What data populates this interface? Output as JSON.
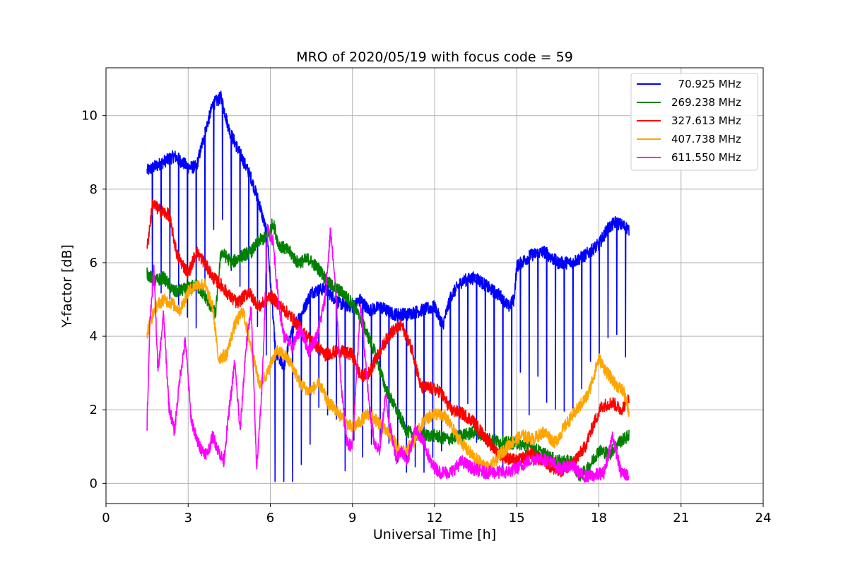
{
  "chart_data": {
    "type": "line",
    "title": "MRO of 2020/05/19 with focus code = 59",
    "xlabel": "Universal Time [h]",
    "ylabel": "Y-factor [dB]",
    "xlim": [
      0,
      24
    ],
    "ylim": [
      -0.55,
      11.3
    ],
    "xticks": [
      "0",
      "3",
      "6",
      "9",
      "12",
      "15",
      "18",
      "21",
      "24"
    ],
    "yticks": [
      "0",
      "2",
      "4",
      "6",
      "8",
      "10"
    ],
    "grid": true,
    "legend_position": "top-right",
    "series": [
      {
        "name": "  70.925 MHz",
        "color": "#0000ff",
        "dips": true,
        "points": [
          [
            1.5,
            8.5
          ],
          [
            2.0,
            8.7
          ],
          [
            2.5,
            8.9
          ],
          [
            3.0,
            8.6
          ],
          [
            3.3,
            8.6
          ],
          [
            3.6,
            9.5
          ],
          [
            3.9,
            10.3
          ],
          [
            4.2,
            10.5
          ],
          [
            4.5,
            9.6
          ],
          [
            5.0,
            8.8
          ],
          [
            5.3,
            8.3
          ],
          [
            5.6,
            7.6
          ],
          [
            5.9,
            6.7
          ],
          [
            6.0,
            5.5
          ],
          [
            6.2,
            3.5
          ],
          [
            6.5,
            3.2
          ],
          [
            6.8,
            4.2
          ],
          [
            7.2,
            4.7
          ],
          [
            7.5,
            5.2
          ],
          [
            8.0,
            5.3
          ],
          [
            8.5,
            4.9
          ],
          [
            9.0,
            4.8
          ],
          [
            9.3,
            5.0
          ],
          [
            9.6,
            4.7
          ],
          [
            10.0,
            4.8
          ],
          [
            10.5,
            4.6
          ],
          [
            11.0,
            4.6
          ],
          [
            11.5,
            4.7
          ],
          [
            12.0,
            4.8
          ],
          [
            12.3,
            4.3
          ],
          [
            12.6,
            5.1
          ],
          [
            13.0,
            5.5
          ],
          [
            13.5,
            5.6
          ],
          [
            14.0,
            5.3
          ],
          [
            14.4,
            5.1
          ],
          [
            14.7,
            4.8
          ],
          [
            14.9,
            5.0
          ],
          [
            15.0,
            5.9
          ],
          [
            15.5,
            6.2
          ],
          [
            16.0,
            6.3
          ],
          [
            16.5,
            6.0
          ],
          [
            17.0,
            6.0
          ],
          [
            17.5,
            6.2
          ],
          [
            18.0,
            6.5
          ],
          [
            18.3,
            6.9
          ],
          [
            18.6,
            7.1
          ],
          [
            18.9,
            7.0
          ],
          [
            19.1,
            6.9
          ]
        ]
      },
      {
        "name": "269.238 MHz",
        "color": "#008000",
        "dips": false,
        "points": [
          [
            1.5,
            5.7
          ],
          [
            1.8,
            5.5
          ],
          [
            2.1,
            5.6
          ],
          [
            2.5,
            5.2
          ],
          [
            3.0,
            5.3
          ],
          [
            3.3,
            5.4
          ],
          [
            3.6,
            5.1
          ],
          [
            4.0,
            4.6
          ],
          [
            4.2,
            6.3
          ],
          [
            4.6,
            6.0
          ],
          [
            5.0,
            6.2
          ],
          [
            5.3,
            6.3
          ],
          [
            5.6,
            6.6
          ],
          [
            5.9,
            6.7
          ],
          [
            6.1,
            7.1
          ],
          [
            6.3,
            6.5
          ],
          [
            6.7,
            6.3
          ],
          [
            7.0,
            6.0
          ],
          [
            7.4,
            6.1
          ],
          [
            7.8,
            5.8
          ],
          [
            8.2,
            5.4
          ],
          [
            8.6,
            5.2
          ],
          [
            9.0,
            4.9
          ],
          [
            9.4,
            4.3
          ],
          [
            9.8,
            3.6
          ],
          [
            10.2,
            2.6
          ],
          [
            10.6,
            2.0
          ],
          [
            11.0,
            1.4
          ],
          [
            11.5,
            1.3
          ],
          [
            12.0,
            1.3
          ],
          [
            12.5,
            1.2
          ],
          [
            13.0,
            1.3
          ],
          [
            13.5,
            1.4
          ],
          [
            14.0,
            1.2
          ],
          [
            14.5,
            1.1
          ],
          [
            15.0,
            1.1
          ],
          [
            15.5,
            1.0
          ],
          [
            16.0,
            0.8
          ],
          [
            16.5,
            0.6
          ],
          [
            17.0,
            0.6
          ],
          [
            17.3,
            0.2
          ],
          [
            17.6,
            0.4
          ],
          [
            18.0,
            0.9
          ],
          [
            18.4,
            0.8
          ],
          [
            18.7,
            1.1
          ],
          [
            19.1,
            1.3
          ]
        ]
      },
      {
        "name": "327.613 MHz",
        "color": "#ff0000",
        "dips": false,
        "points": [
          [
            1.5,
            6.4
          ],
          [
            1.7,
            7.6
          ],
          [
            2.0,
            7.4
          ],
          [
            2.3,
            7.3
          ],
          [
            2.6,
            6.2
          ],
          [
            3.0,
            5.7
          ],
          [
            3.3,
            6.3
          ],
          [
            3.6,
            6.0
          ],
          [
            3.9,
            5.6
          ],
          [
            4.2,
            5.4
          ],
          [
            4.5,
            5.1
          ],
          [
            4.8,
            4.9
          ],
          [
            5.2,
            5.2
          ],
          [
            5.6,
            4.8
          ],
          [
            6.0,
            5.1
          ],
          [
            6.4,
            4.8
          ],
          [
            6.8,
            4.5
          ],
          [
            7.2,
            4.1
          ],
          [
            7.6,
            3.8
          ],
          [
            8.0,
            3.5
          ],
          [
            8.5,
            3.6
          ],
          [
            9.0,
            3.5
          ],
          [
            9.3,
            2.9
          ],
          [
            9.6,
            3.0
          ],
          [
            10.0,
            3.6
          ],
          [
            10.4,
            4.1
          ],
          [
            10.8,
            4.3
          ],
          [
            11.2,
            3.6
          ],
          [
            11.5,
            2.6
          ],
          [
            11.8,
            2.6
          ],
          [
            12.2,
            2.5
          ],
          [
            12.6,
            2.0
          ],
          [
            13.0,
            1.9
          ],
          [
            13.4,
            1.7
          ],
          [
            13.8,
            1.3
          ],
          [
            14.2,
            0.9
          ],
          [
            14.6,
            0.7
          ],
          [
            15.0,
            0.6
          ],
          [
            15.5,
            0.8
          ],
          [
            16.0,
            0.6
          ],
          [
            16.5,
            0.3
          ],
          [
            17.0,
            0.5
          ],
          [
            17.5,
            1.0
          ],
          [
            17.8,
            1.6
          ],
          [
            18.1,
            2.1
          ],
          [
            18.5,
            2.2
          ],
          [
            18.8,
            2.0
          ],
          [
            19.1,
            2.3
          ]
        ]
      },
      {
        "name": "407.738 MHz",
        "color": "#ffa500",
        "dips": false,
        "points": [
          [
            1.5,
            4.1
          ],
          [
            1.8,
            4.8
          ],
          [
            2.1,
            5.0
          ],
          [
            2.4,
            4.9
          ],
          [
            2.7,
            4.7
          ],
          [
            3.0,
            5.2
          ],
          [
            3.3,
            5.4
          ],
          [
            3.6,
            5.4
          ],
          [
            3.9,
            4.8
          ],
          [
            4.1,
            3.4
          ],
          [
            4.4,
            3.5
          ],
          [
            4.7,
            4.3
          ],
          [
            5.0,
            4.7
          ],
          [
            5.3,
            3.7
          ],
          [
            5.6,
            2.7
          ],
          [
            5.9,
            3.0
          ],
          [
            6.2,
            3.6
          ],
          [
            6.5,
            3.5
          ],
          [
            6.8,
            3.2
          ],
          [
            7.1,
            2.7
          ],
          [
            7.4,
            2.5
          ],
          [
            7.8,
            2.7
          ],
          [
            8.1,
            2.2
          ],
          [
            8.4,
            2.0
          ],
          [
            8.7,
            1.7
          ],
          [
            9.0,
            1.5
          ],
          [
            9.3,
            1.7
          ],
          [
            9.6,
            1.9
          ],
          [
            10.0,
            1.6
          ],
          [
            10.4,
            1.3
          ],
          [
            10.8,
            0.8
          ],
          [
            11.2,
            1.1
          ],
          [
            11.6,
            1.7
          ],
          [
            12.0,
            1.9
          ],
          [
            12.4,
            1.8
          ],
          [
            12.8,
            1.3
          ],
          [
            13.2,
            0.9
          ],
          [
            13.6,
            0.6
          ],
          [
            14.0,
            0.4
          ],
          [
            14.4,
            0.8
          ],
          [
            14.8,
            1.1
          ],
          [
            15.2,
            1.3
          ],
          [
            15.6,
            1.2
          ],
          [
            16.0,
            1.4
          ],
          [
            16.4,
            1.1
          ],
          [
            16.8,
            1.6
          ],
          [
            17.2,
            2.0
          ],
          [
            17.6,
            2.4
          ],
          [
            18.0,
            3.4
          ],
          [
            18.3,
            3.0
          ],
          [
            18.6,
            2.7
          ],
          [
            18.9,
            2.5
          ],
          [
            19.1,
            1.9
          ]
        ]
      },
      {
        "name": "611.550 MHz",
        "color": "#ff00ff",
        "dips": false,
        "points": [
          [
            1.5,
            1.6
          ],
          [
            1.6,
            4.4
          ],
          [
            1.75,
            5.8
          ],
          [
            1.9,
            3.0
          ],
          [
            2.1,
            4.6
          ],
          [
            2.3,
            2.1
          ],
          [
            2.5,
            1.4
          ],
          [
            2.7,
            2.9
          ],
          [
            2.9,
            3.9
          ],
          [
            3.1,
            1.8
          ],
          [
            3.3,
            1.2
          ],
          [
            3.5,
            0.9
          ],
          [
            3.7,
            0.8
          ],
          [
            3.9,
            1.3
          ],
          [
            4.1,
            0.9
          ],
          [
            4.3,
            0.6
          ],
          [
            4.5,
            2.0
          ],
          [
            4.7,
            3.3
          ],
          [
            4.9,
            1.4
          ],
          [
            5.1,
            3.6
          ],
          [
            5.3,
            4.8
          ],
          [
            5.5,
            0.4
          ],
          [
            5.7,
            2.6
          ],
          [
            5.9,
            6.9
          ],
          [
            6.1,
            6.6
          ],
          [
            6.3,
            4.9
          ],
          [
            6.5,
            4.0
          ],
          [
            6.8,
            3.7
          ],
          [
            7.1,
            4.2
          ],
          [
            7.4,
            3.6
          ],
          [
            7.7,
            4.0
          ],
          [
            8.0,
            5.0
          ],
          [
            8.2,
            6.9
          ],
          [
            8.4,
            5.1
          ],
          [
            8.6,
            2.5
          ],
          [
            8.8,
            1.1
          ],
          [
            9.0,
            1.0
          ],
          [
            9.3,
            4.9
          ],
          [
            9.6,
            2.2
          ],
          [
            9.8,
            1.1
          ],
          [
            10.0,
            0.9
          ],
          [
            10.2,
            2.4
          ],
          [
            10.4,
            1.4
          ],
          [
            10.6,
            0.7
          ],
          [
            10.8,
            0.9
          ],
          [
            11.0,
            0.6
          ],
          [
            11.3,
            1.5
          ],
          [
            11.6,
            1.1
          ],
          [
            11.9,
            0.5
          ],
          [
            12.2,
            0.3
          ],
          [
            12.6,
            0.3
          ],
          [
            13.0,
            0.6
          ],
          [
            13.4,
            0.4
          ],
          [
            13.8,
            0.3
          ],
          [
            14.2,
            0.3
          ],
          [
            14.6,
            0.3
          ],
          [
            15.0,
            0.4
          ],
          [
            15.4,
            0.6
          ],
          [
            15.8,
            0.7
          ],
          [
            16.2,
            0.6
          ],
          [
            16.6,
            0.4
          ],
          [
            17.0,
            0.5
          ],
          [
            17.4,
            0.2
          ],
          [
            17.8,
            0.2
          ],
          [
            18.2,
            0.3
          ],
          [
            18.5,
            1.3
          ],
          [
            18.8,
            0.3
          ],
          [
            19.1,
            0.2
          ]
        ]
      }
    ]
  }
}
